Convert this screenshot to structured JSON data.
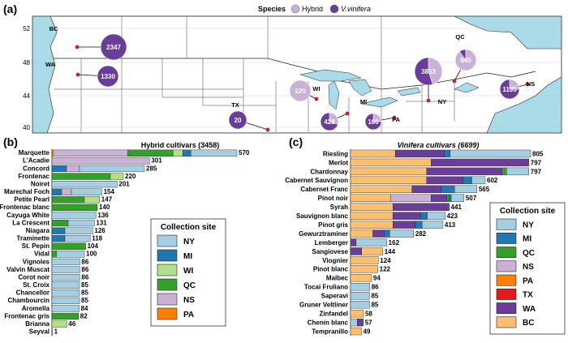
{
  "panels": {
    "a": "(a)",
    "b": "(b)",
    "c": "(c)"
  },
  "colors": {
    "NY": "#a6cee3",
    "MI": "#1f78b4",
    "WI": "#b2df8a",
    "QC": "#33a02c",
    "NS": "#cab2d6",
    "PA": "#ff7f00",
    "TX": "#e31a1c",
    "WA": "#6a3d9a",
    "BC": "#fdbf6f",
    "hybrid": "#cab2d6",
    "vinifera": "#6a3d9a",
    "water": "#aadbe8",
    "land": "#ffffff",
    "outside": "#d9d9d9"
  },
  "map": {
    "legend_title": "Species",
    "legend_items": [
      "Hybrid",
      "V.vinifera"
    ],
    "lat_ticks": [
      "52",
      "48",
      "44",
      "40"
    ],
    "region_labels": [
      "BC",
      "WA",
      "TX",
      "WI",
      "MI",
      "NY",
      "PA",
      "QC",
      "NS"
    ],
    "pies": [
      {
        "region": "BC",
        "total": "2347",
        "hybrid_fraction": 0.0
      },
      {
        "region": "WA",
        "total": "1330",
        "hybrid_fraction": 0.0
      },
      {
        "region": "TX",
        "total": "20",
        "hybrid_fraction": 0.0
      },
      {
        "region": "WI",
        "total": "220",
        "hybrid_fraction": 1.0
      },
      {
        "region": "MI",
        "total": "428",
        "hybrid_fraction": 0.3
      },
      {
        "region": "PA",
        "total": "160",
        "hybrid_fraction": 0.25
      },
      {
        "region": "NY",
        "total": "3833",
        "hybrid_fraction": 0.45
      },
      {
        "region": "QC",
        "total": "845",
        "hybrid_fraction": 0.9
      },
      {
        "region": "NS",
        "total": "1135",
        "hybrid_fraction": 0.25
      }
    ]
  },
  "legend": {
    "title": "Collection site",
    "items": [
      "NY",
      "MI",
      "WI",
      "QC",
      "NS",
      "PA",
      "TX",
      "WA",
      "BC"
    ]
  },
  "chart_data": [
    {
      "type": "bar",
      "stacked": true,
      "orientation": "horizontal",
      "title": "Hybrid cultivars (3458)",
      "categories": [
        "Marquette",
        "L'Acadie",
        "Concord",
        "Frontenac",
        "Noiret",
        "Marechal Foch",
        "Petite Pearl",
        "Frontenac blanc",
        "Cayuga White",
        "La Crescent",
        "Niagara",
        "Traminette",
        "St. Pepin",
        "Vidal",
        "Vignoles",
        "Valvin Muscat",
        "Corot noir",
        "St. Croix",
        "Chancellor",
        "Chambourcin",
        "Aromella",
        "Frontenac gris",
        "Brianna",
        "Seyval"
      ],
      "totals": [
        570,
        301,
        285,
        220,
        201,
        154,
        147,
        140,
        136,
        131,
        126,
        118,
        104,
        100,
        86,
        86,
        86,
        85,
        85,
        85,
        84,
        82,
        46,
        1
      ],
      "stacks": [
        [
          [
            "PA",
            3
          ],
          [
            "NS",
            230
          ],
          [
            "QC",
            140
          ],
          [
            "WI",
            30
          ],
          [
            "MI",
            25
          ],
          [
            "NY",
            142
          ]
        ],
        [
          [
            "NS",
            301
          ]
        ],
        [
          [
            "MI",
            45
          ],
          [
            "NS",
            40
          ],
          [
            "NY",
            200
          ]
        ],
        [
          [
            "QC",
            180
          ],
          [
            "WI",
            40
          ]
        ],
        [
          [
            "NY",
            201
          ]
        ],
        [
          [
            "MI",
            30
          ],
          [
            "NS",
            30
          ],
          [
            "NY",
            94
          ]
        ],
        [
          [
            "QC",
            100
          ],
          [
            "WI",
            47
          ]
        ],
        [
          [
            "QC",
            140
          ]
        ],
        [
          [
            "NY",
            136
          ]
        ],
        [
          [
            "QC",
            50
          ],
          [
            "NY",
            81
          ]
        ],
        [
          [
            "MI",
            40
          ],
          [
            "NY",
            86
          ]
        ],
        [
          [
            "MI",
            40
          ],
          [
            "NY",
            78
          ]
        ],
        [
          [
            "QC",
            104
          ]
        ],
        [
          [
            "QC",
            14
          ],
          [
            "NY",
            86
          ]
        ],
        [
          [
            "NY",
            86
          ]
        ],
        [
          [
            "NY",
            86
          ]
        ],
        [
          [
            "NY",
            86
          ]
        ],
        [
          [
            "NY",
            85
          ]
        ],
        [
          [
            "NY",
            85
          ]
        ],
        [
          [
            "NY",
            85
          ]
        ],
        [
          [
            "NY",
            84
          ]
        ],
        [
          [
            "QC",
            82
          ]
        ],
        [
          [
            "WI",
            46
          ]
        ],
        [
          [
            "NY",
            1
          ]
        ]
      ],
      "legend_placement": "right"
    },
    {
      "type": "bar",
      "stacked": true,
      "orientation": "horizontal",
      "title": "Vinifera cultivars (6699)",
      "categories": [
        "Riesling",
        "Merlot",
        "Chardonnay",
        "Cabernet Sauvignon",
        "Cabernet Franc",
        "Pinot noir",
        "Syrah",
        "Sauvignon blanc",
        "Pinot gris",
        "Gewurztraminer",
        "Lemberger",
        "Sangiovese",
        "Viognier",
        "Pinot blanc",
        "Malbec",
        "Tocai Fruliano",
        "Saperavi",
        "Gruner Veltliner",
        "Zinfandel",
        "Chenin blanc",
        "Tempranillo"
      ],
      "totals": [
        805,
        797,
        797,
        602,
        565,
        507,
        441,
        423,
        413,
        282,
        162,
        144,
        124,
        122,
        94,
        86,
        85,
        85,
        58,
        57,
        49
      ],
      "stacks": [
        [
          [
            "BC",
            200
          ],
          [
            "WA",
            220
          ],
          [
            "MI",
            25
          ],
          [
            "NY",
            360
          ]
        ],
        [
          [
            "BC",
            360
          ],
          [
            "WA",
            437
          ]
        ],
        [
          [
            "BC",
            340
          ],
          [
            "WA",
            337
          ],
          [
            "QC",
            20
          ],
          [
            "NY",
            100
          ]
        ],
        [
          [
            "BC",
            340
          ],
          [
            "WA",
            162
          ],
          [
            "MI",
            40
          ],
          [
            "NY",
            60
          ]
        ],
        [
          [
            "BC",
            275
          ],
          [
            "WA",
            130
          ],
          [
            "MI",
            60
          ],
          [
            "NY",
            100
          ]
        ],
        [
          [
            "BC",
            180
          ],
          [
            "NS",
            180
          ],
          [
            "WA",
            70
          ],
          [
            "QC",
            10
          ],
          [
            "MI",
            10
          ],
          [
            "NY",
            57
          ]
        ],
        [
          [
            "BC",
            190
          ],
          [
            "WA",
            251
          ]
        ],
        [
          [
            "BC",
            190
          ],
          [
            "WA",
            123
          ],
          [
            "MI",
            30
          ],
          [
            "NY",
            80
          ]
        ],
        [
          [
            "BC",
            190
          ],
          [
            "WA",
            100
          ],
          [
            "MI",
            30
          ],
          [
            "NY",
            93
          ]
        ],
        [
          [
            "BC",
            100
          ],
          [
            "WA",
            50
          ],
          [
            "MI",
            25
          ],
          [
            "NY",
            107
          ]
        ],
        [
          [
            "WA",
            25
          ],
          [
            "NY",
            137
          ]
        ],
        [
          [
            "WA",
            50
          ],
          [
            "BC",
            94
          ]
        ],
        [
          [
            "BC",
            124
          ]
        ],
        [
          [
            "BC",
            122
          ]
        ],
        [
          [
            "BC",
            94
          ]
        ],
        [
          [
            "NY",
            86
          ]
        ],
        [
          [
            "NY",
            85
          ]
        ],
        [
          [
            "NY",
            85
          ]
        ],
        [
          [
            "BC",
            58
          ]
        ],
        [
          [
            "NY",
            30
          ],
          [
            "WA",
            27
          ]
        ],
        [
          [
            "BC",
            49
          ]
        ]
      ],
      "legend_placement": "right"
    }
  ]
}
